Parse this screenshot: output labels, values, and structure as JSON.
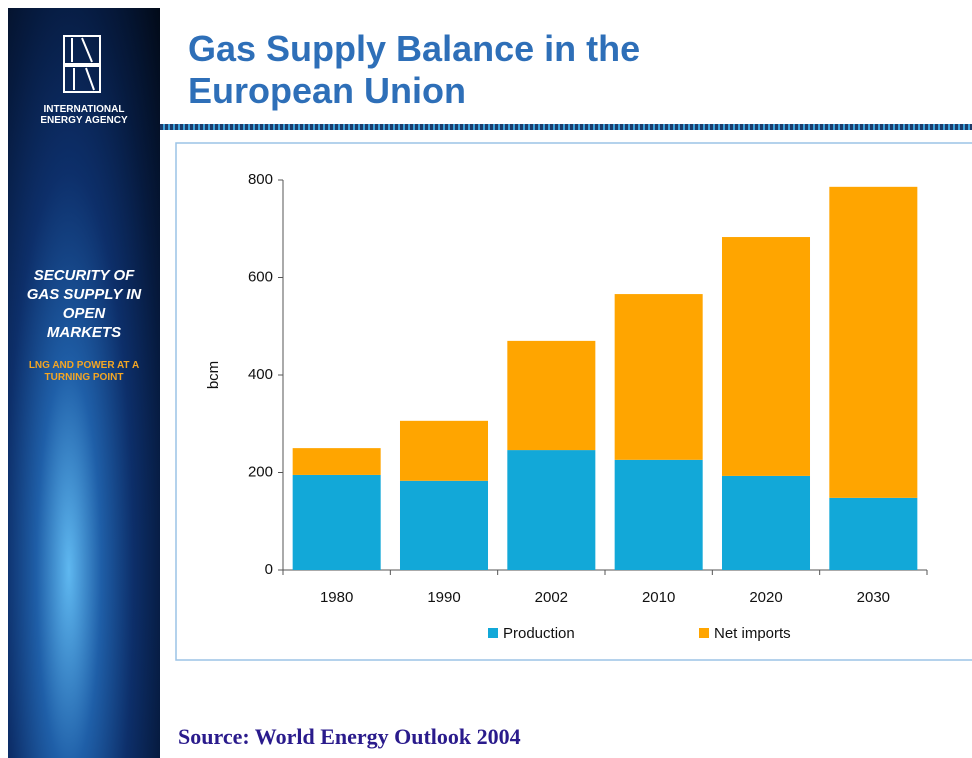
{
  "slide": {
    "title": "Gas Supply Balance in the European Union",
    "org": "INTERNATIONAL ENERGY AGENCY",
    "headline": "SECURITY OF GAS SUPPLY IN OPEN MARKETS",
    "subline": "LNG AND POWER AT A TURNING POINT",
    "source": "Source: World Energy Outlook 2004"
  },
  "chart_data": {
    "type": "stacked-bar",
    "ylabel": "bcm",
    "categories": [
      "1980",
      "1990",
      "2002",
      "2010",
      "2020",
      "2030"
    ],
    "series": [
      {
        "name": "Production",
        "color": "#12a8d8",
        "values": [
          195,
          183,
          246,
          226,
          193,
          148
        ]
      },
      {
        "name": "Net imports",
        "color": "#ffa500",
        "values": [
          55,
          123,
          224,
          340,
          490,
          638
        ]
      }
    ],
    "ylim": [
      0,
      800
    ],
    "yticks": [
      0,
      200,
      400,
      600,
      800
    ],
    "legend": "bottom"
  }
}
